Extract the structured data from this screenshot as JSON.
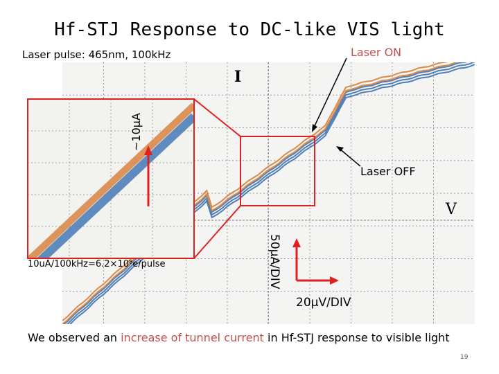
{
  "slide": {
    "title": "Hf-STJ Response to DC-like VIS light",
    "subtitle": "Laser pulse: 465nm, 100kHz",
    "laser_on_label": "Laser ON",
    "laser_off_label": "Laser OFF",
    "current_axis_symbol": "I",
    "voltage_axis_symbol": "V",
    "current_scale": "50μA/DIV",
    "voltage_scale": "20μV/DIV",
    "inset_current_label": "~10μA",
    "inset_note": "10uA/100kHz=6.2×10⁸e/pulse",
    "caption_before": "We observed an ",
    "caption_highlight": "increase of tunnel current",
    "caption_after": " in Hf-STJ response to visible light",
    "page_number": "19",
    "colors": {
      "laser_on": "#d98a4a",
      "laser_off": "#4f7fb8",
      "highlight": "#c0504d",
      "zoom_box": "#e02020"
    }
  },
  "chart_data": {
    "type": "line",
    "title": "Hf-STJ Response to DC-like VIS light",
    "xlabel": "V",
    "ylabel": "I",
    "x_scale": "20μV/DIV",
    "y_scale": "50μA/DIV",
    "grid": true,
    "series": [
      {
        "name": "Laser ON",
        "color": "#d98a4a"
      },
      {
        "name": "Laser OFF",
        "color": "#4f7fb8"
      }
    ],
    "annotations": [
      "Laser ON",
      "Laser OFF",
      "~10μA",
      "10uA/100kHz=6.2×10⁸e/pulse"
    ]
  }
}
